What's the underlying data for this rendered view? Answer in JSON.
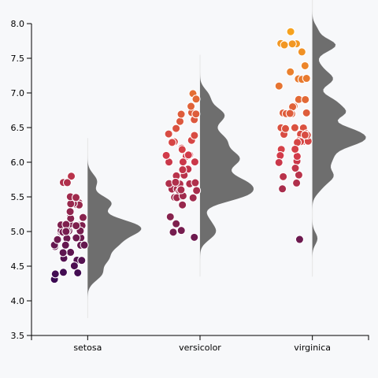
{
  "chart_data": {
    "type": "scatter",
    "title": "",
    "xlabel": "",
    "ylabel": "",
    "categories": [
      "setosa",
      "versicolor",
      "virginica"
    ],
    "ylim": [
      3.5,
      8.0
    ],
    "y_ticks": [
      3.5,
      4.0,
      4.5,
      5.0,
      5.5,
      6.0,
      6.5,
      7.0,
      7.5,
      8.0
    ],
    "grid": false,
    "legend": "none",
    "color_scale": {
      "type": "sequential",
      "low": "#3b0a52",
      "mid": "#d23b4a",
      "high": "#f6a21e",
      "domain": [
        4.3,
        7.9
      ]
    },
    "density_color": "#6e6e6e",
    "series": [
      {
        "category": "setosa",
        "values": [
          5.1,
          4.9,
          4.7,
          4.6,
          5.0,
          5.4,
          4.6,
          5.0,
          4.4,
          4.9,
          5.4,
          4.8,
          4.8,
          4.3,
          5.8,
          5.7,
          5.4,
          5.1,
          5.7,
          5.1,
          5.4,
          5.1,
          4.6,
          5.1,
          4.8,
          5.0,
          5.0,
          5.2,
          5.2,
          4.7,
          4.8,
          5.4,
          5.2,
          5.5,
          4.9,
          5.0,
          5.5,
          4.9,
          4.4,
          5.1,
          5.0,
          4.5,
          4.4,
          5.0,
          5.1,
          4.8,
          5.1,
          4.6,
          5.3,
          5.0
        ]
      },
      {
        "category": "versicolor",
        "values": [
          7.0,
          6.4,
          6.9,
          5.5,
          6.5,
          5.7,
          6.3,
          4.9,
          6.6,
          5.2,
          5.0,
          5.9,
          6.0,
          6.1,
          5.6,
          6.7,
          5.6,
          5.8,
          6.2,
          5.6,
          5.9,
          6.1,
          6.3,
          6.1,
          6.4,
          6.6,
          6.8,
          6.7,
          6.0,
          5.7,
          5.5,
          5.5,
          5.8,
          6.0,
          5.4,
          6.0,
          6.7,
          6.3,
          5.6,
          5.5,
          5.5,
          6.1,
          5.8,
          5.0,
          5.6,
          5.7,
          5.7,
          6.2,
          5.1,
          5.7
        ]
      },
      {
        "category": "virginica",
        "values": [
          6.3,
          5.8,
          7.1,
          6.3,
          6.5,
          7.6,
          4.9,
          7.3,
          6.7,
          7.2,
          6.5,
          6.4,
          6.8,
          5.7,
          5.8,
          6.4,
          6.5,
          7.7,
          7.7,
          6.0,
          6.9,
          5.6,
          7.7,
          6.3,
          6.7,
          7.2,
          6.2,
          6.1,
          6.4,
          7.2,
          7.4,
          7.9,
          6.4,
          6.3,
          6.1,
          7.7,
          6.3,
          6.4,
          6.0,
          6.9,
          6.7,
          6.9,
          5.8,
          6.8,
          6.7,
          6.7,
          6.3,
          6.5,
          6.2,
          5.9
        ]
      }
    ]
  }
}
